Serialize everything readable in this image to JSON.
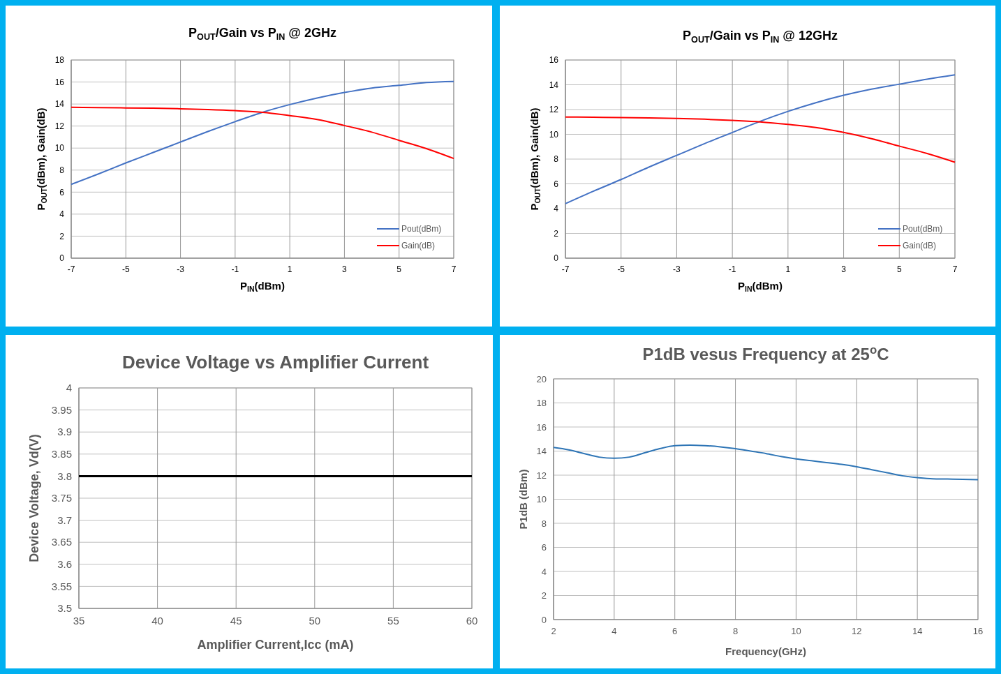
{
  "chart_data": [
    {
      "type": "line",
      "title": "P$_{OUT}$/Gain vs P$_{IN}$ @ 2GHz",
      "xlabel": "P$_{IN}$(dBm)",
      "ylabel": "P$_{OUT}$(dBm), Gain(dB)",
      "x": [
        -7,
        -6,
        -5,
        -4,
        -3,
        -2,
        -1,
        0,
        1,
        2,
        3,
        4,
        5,
        6,
        7
      ],
      "series": [
        {
          "name": "Pout(dBm)",
          "color": "#4472c4",
          "values": [
            6.7,
            7.65,
            8.65,
            9.6,
            10.55,
            11.5,
            12.4,
            13.25,
            13.95,
            14.55,
            15.05,
            15.45,
            15.7,
            15.95,
            16.05
          ]
        },
        {
          "name": "Gain(dB)",
          "color": "#ff0000",
          "values": [
            13.7,
            13.68,
            13.65,
            13.62,
            13.57,
            13.5,
            13.4,
            13.25,
            12.95,
            12.6,
            12.05,
            11.45,
            10.7,
            9.95,
            9.05
          ]
        }
      ],
      "xlim": [
        -7,
        7
      ],
      "xticks": [
        -7,
        -5,
        -3,
        -1,
        1,
        3,
        5,
        7
      ],
      "ylim": [
        0,
        18
      ],
      "yticks": [
        0,
        2,
        4,
        6,
        8,
        10,
        12,
        14,
        16,
        18
      ],
      "grid": true,
      "legend": "bottom right",
      "marker": "none",
      "line_style": "solid"
    },
    {
      "type": "line",
      "title": "P$_{OUT}$/Gain vs P$_{IN}$ @ 12GHz",
      "xlabel": "P$_{IN}$(dBm)",
      "ylabel": "P$_{OUT}$(dBm), Gain(dB)",
      "x": [
        -7,
        -6,
        -5,
        -4,
        -3,
        -2,
        -1,
        0,
        1,
        2,
        3,
        4,
        5,
        6,
        7
      ],
      "series": [
        {
          "name": "Pout(dBm)",
          "color": "#4472c4",
          "values": [
            4.4,
            5.4,
            6.35,
            7.35,
            8.3,
            9.25,
            10.15,
            11.05,
            11.85,
            12.55,
            13.15,
            13.65,
            14.05,
            14.45,
            14.8
          ]
        },
        {
          "name": "Gain(dB)",
          "color": "#ff0000",
          "values": [
            11.4,
            11.38,
            11.35,
            11.32,
            11.28,
            11.22,
            11.12,
            11.0,
            10.8,
            10.55,
            10.15,
            9.65,
            9.05,
            8.45,
            7.75
          ]
        }
      ],
      "xlim": [
        -7,
        7
      ],
      "xticks": [
        -7,
        -5,
        -3,
        -1,
        1,
        3,
        5,
        7
      ],
      "ylim": [
        0,
        16
      ],
      "yticks": [
        0,
        2,
        4,
        6,
        8,
        10,
        12,
        14,
        16
      ],
      "grid": true,
      "legend": "bottom right",
      "marker": "none",
      "line_style": "solid"
    },
    {
      "type": "line",
      "title": "Device Voltage vs Amplifier Current",
      "xlabel": "Amplifier Current,Icc (mA)",
      "ylabel": "Device Voltage, Vd(V)",
      "x": [
        35,
        60
      ],
      "series": [
        {
          "color": "#000000",
          "values": [
            3.8,
            3.8
          ]
        }
      ],
      "xlim": [
        35,
        60
      ],
      "xticks": [
        35,
        40,
        45,
        50,
        55,
        60
      ],
      "ylim": [
        3.5,
        4
      ],
      "yticks": [
        3.5,
        3.55,
        3.6,
        3.65,
        3.7,
        3.75,
        3.8,
        3.85,
        3.9,
        3.95,
        4
      ],
      "grid": true,
      "legend": false,
      "marker": "none",
      "line_style": "solid"
    },
    {
      "type": "line",
      "title": "P1dB vesus Frequency at 25$^{o}$C",
      "xlabel": "Frequency(GHz)",
      "ylabel": "P1dB (dBm)",
      "x": [
        2,
        2.5,
        3,
        3.5,
        4,
        4.5,
        5,
        5.5,
        6,
        6.5,
        7,
        7.5,
        8,
        8.5,
        9,
        9.5,
        10,
        10.5,
        11,
        11.5,
        12,
        12.5,
        13,
        13.5,
        14,
        14.5,
        15,
        15.5,
        16
      ],
      "series": [
        {
          "color": "#2e75b6",
          "values": [
            14.3,
            14.1,
            13.8,
            13.5,
            13.4,
            13.5,
            13.85,
            14.2,
            14.45,
            14.5,
            14.45,
            14.35,
            14.2,
            14.0,
            13.8,
            13.55,
            13.35,
            13.2,
            13.05,
            12.9,
            12.7,
            12.45,
            12.2,
            11.95,
            11.8,
            11.7,
            11.68,
            11.65,
            11.62
          ]
        }
      ],
      "xlim": [
        2,
        16
      ],
      "xticks": [
        2,
        4,
        6,
        8,
        10,
        12,
        14,
        16
      ],
      "ylim": [
        0,
        20
      ],
      "yticks": [
        0,
        2,
        4,
        6,
        8,
        10,
        12,
        14,
        16,
        18,
        20
      ],
      "grid": true,
      "legend": false,
      "marker": "none",
      "line_style": "solid"
    }
  ]
}
